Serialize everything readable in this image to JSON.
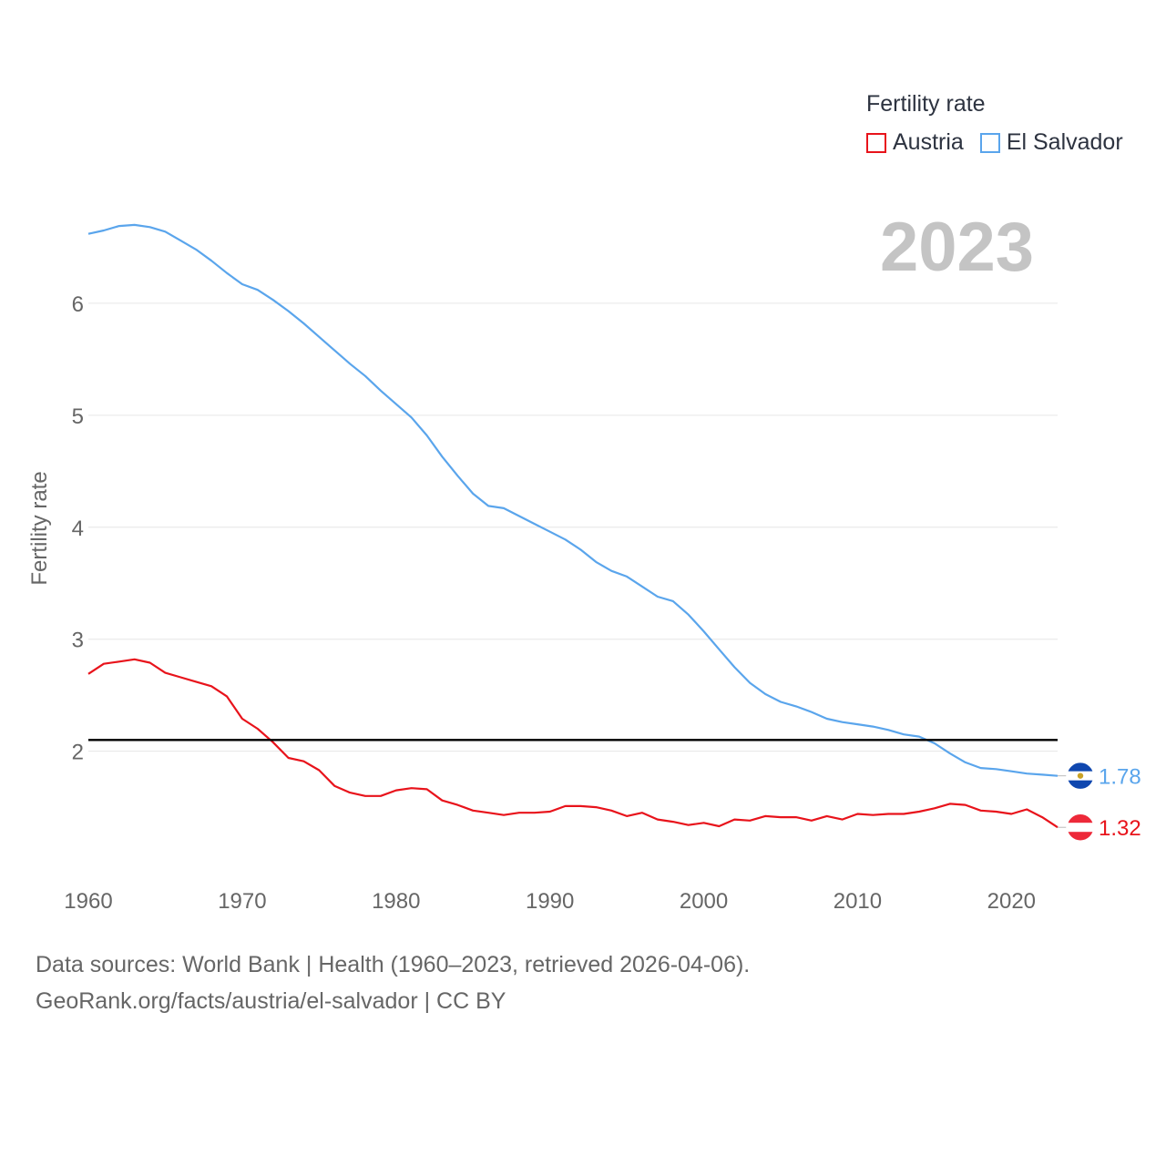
{
  "legend": {
    "title": "Fertility rate",
    "items": [
      {
        "label": "Austria",
        "color": "#e8131b"
      },
      {
        "label": "El Salvador",
        "color": "#5aa5ec"
      }
    ]
  },
  "year_label": "2023",
  "footer": {
    "line1": "Data sources: World Bank | Health (1960–2023, retrieved 2026-04-06).",
    "line2": "GeoRank.org/facts/austria/el-salvador | CC BY"
  },
  "chart_data": {
    "type": "line",
    "title": "",
    "ylabel": "Fertility rate",
    "xlabel": "",
    "xlim": [
      1960,
      2023
    ],
    "ylim": [
      0.98,
      7.0
    ],
    "x_ticks": [
      1960,
      1970,
      1980,
      1990,
      2000,
      2010,
      2020
    ],
    "y_ticks": [
      2,
      3,
      4,
      5,
      6
    ],
    "reference_line": {
      "value": 2.1,
      "color": "#000000"
    },
    "x": [
      1960,
      1961,
      1962,
      1963,
      1964,
      1965,
      1966,
      1967,
      1968,
      1969,
      1970,
      1971,
      1972,
      1973,
      1974,
      1975,
      1976,
      1977,
      1978,
      1979,
      1980,
      1981,
      1982,
      1983,
      1984,
      1985,
      1986,
      1987,
      1988,
      1989,
      1990,
      1991,
      1992,
      1993,
      1994,
      1995,
      1996,
      1997,
      1998,
      1999,
      2000,
      2001,
      2002,
      2003,
      2004,
      2005,
      2006,
      2007,
      2008,
      2009,
      2010,
      2011,
      2012,
      2013,
      2014,
      2015,
      2016,
      2017,
      2018,
      2019,
      2020,
      2021,
      2022,
      2023
    ],
    "series": [
      {
        "name": "Austria",
        "color": "#e8131b",
        "end_label": "1.32",
        "values": [
          2.69,
          2.78,
          2.8,
          2.82,
          2.79,
          2.7,
          2.66,
          2.62,
          2.58,
          2.49,
          2.29,
          2.2,
          2.08,
          1.94,
          1.91,
          1.83,
          1.69,
          1.63,
          1.6,
          1.6,
          1.65,
          1.67,
          1.66,
          1.56,
          1.52,
          1.47,
          1.45,
          1.43,
          1.45,
          1.45,
          1.46,
          1.51,
          1.51,
          1.5,
          1.47,
          1.42,
          1.45,
          1.39,
          1.37,
          1.34,
          1.36,
          1.33,
          1.39,
          1.38,
          1.42,
          1.41,
          1.41,
          1.38,
          1.42,
          1.39,
          1.44,
          1.43,
          1.44,
          1.44,
          1.46,
          1.49,
          1.53,
          1.52,
          1.47,
          1.46,
          1.44,
          1.48,
          1.41,
          1.32
        ]
      },
      {
        "name": "El Salvador",
        "color": "#5aa5ec",
        "end_label": "1.78",
        "values": [
          6.62,
          6.65,
          6.69,
          6.7,
          6.68,
          6.64,
          6.56,
          6.48,
          6.38,
          6.27,
          6.17,
          6.12,
          6.03,
          5.93,
          5.82,
          5.7,
          5.58,
          5.46,
          5.35,
          5.22,
          5.1,
          4.98,
          4.82,
          4.63,
          4.46,
          4.3,
          4.19,
          4.17,
          4.1,
          4.03,
          3.96,
          3.89,
          3.8,
          3.69,
          3.61,
          3.56,
          3.47,
          3.38,
          3.34,
          3.22,
          3.07,
          2.91,
          2.75,
          2.61,
          2.51,
          2.44,
          2.4,
          2.35,
          2.29,
          2.26,
          2.24,
          2.22,
          2.19,
          2.15,
          2.13,
          2.07,
          1.98,
          1.9,
          1.85,
          1.84,
          1.82,
          1.8,
          1.79,
          1.78
        ]
      }
    ]
  }
}
